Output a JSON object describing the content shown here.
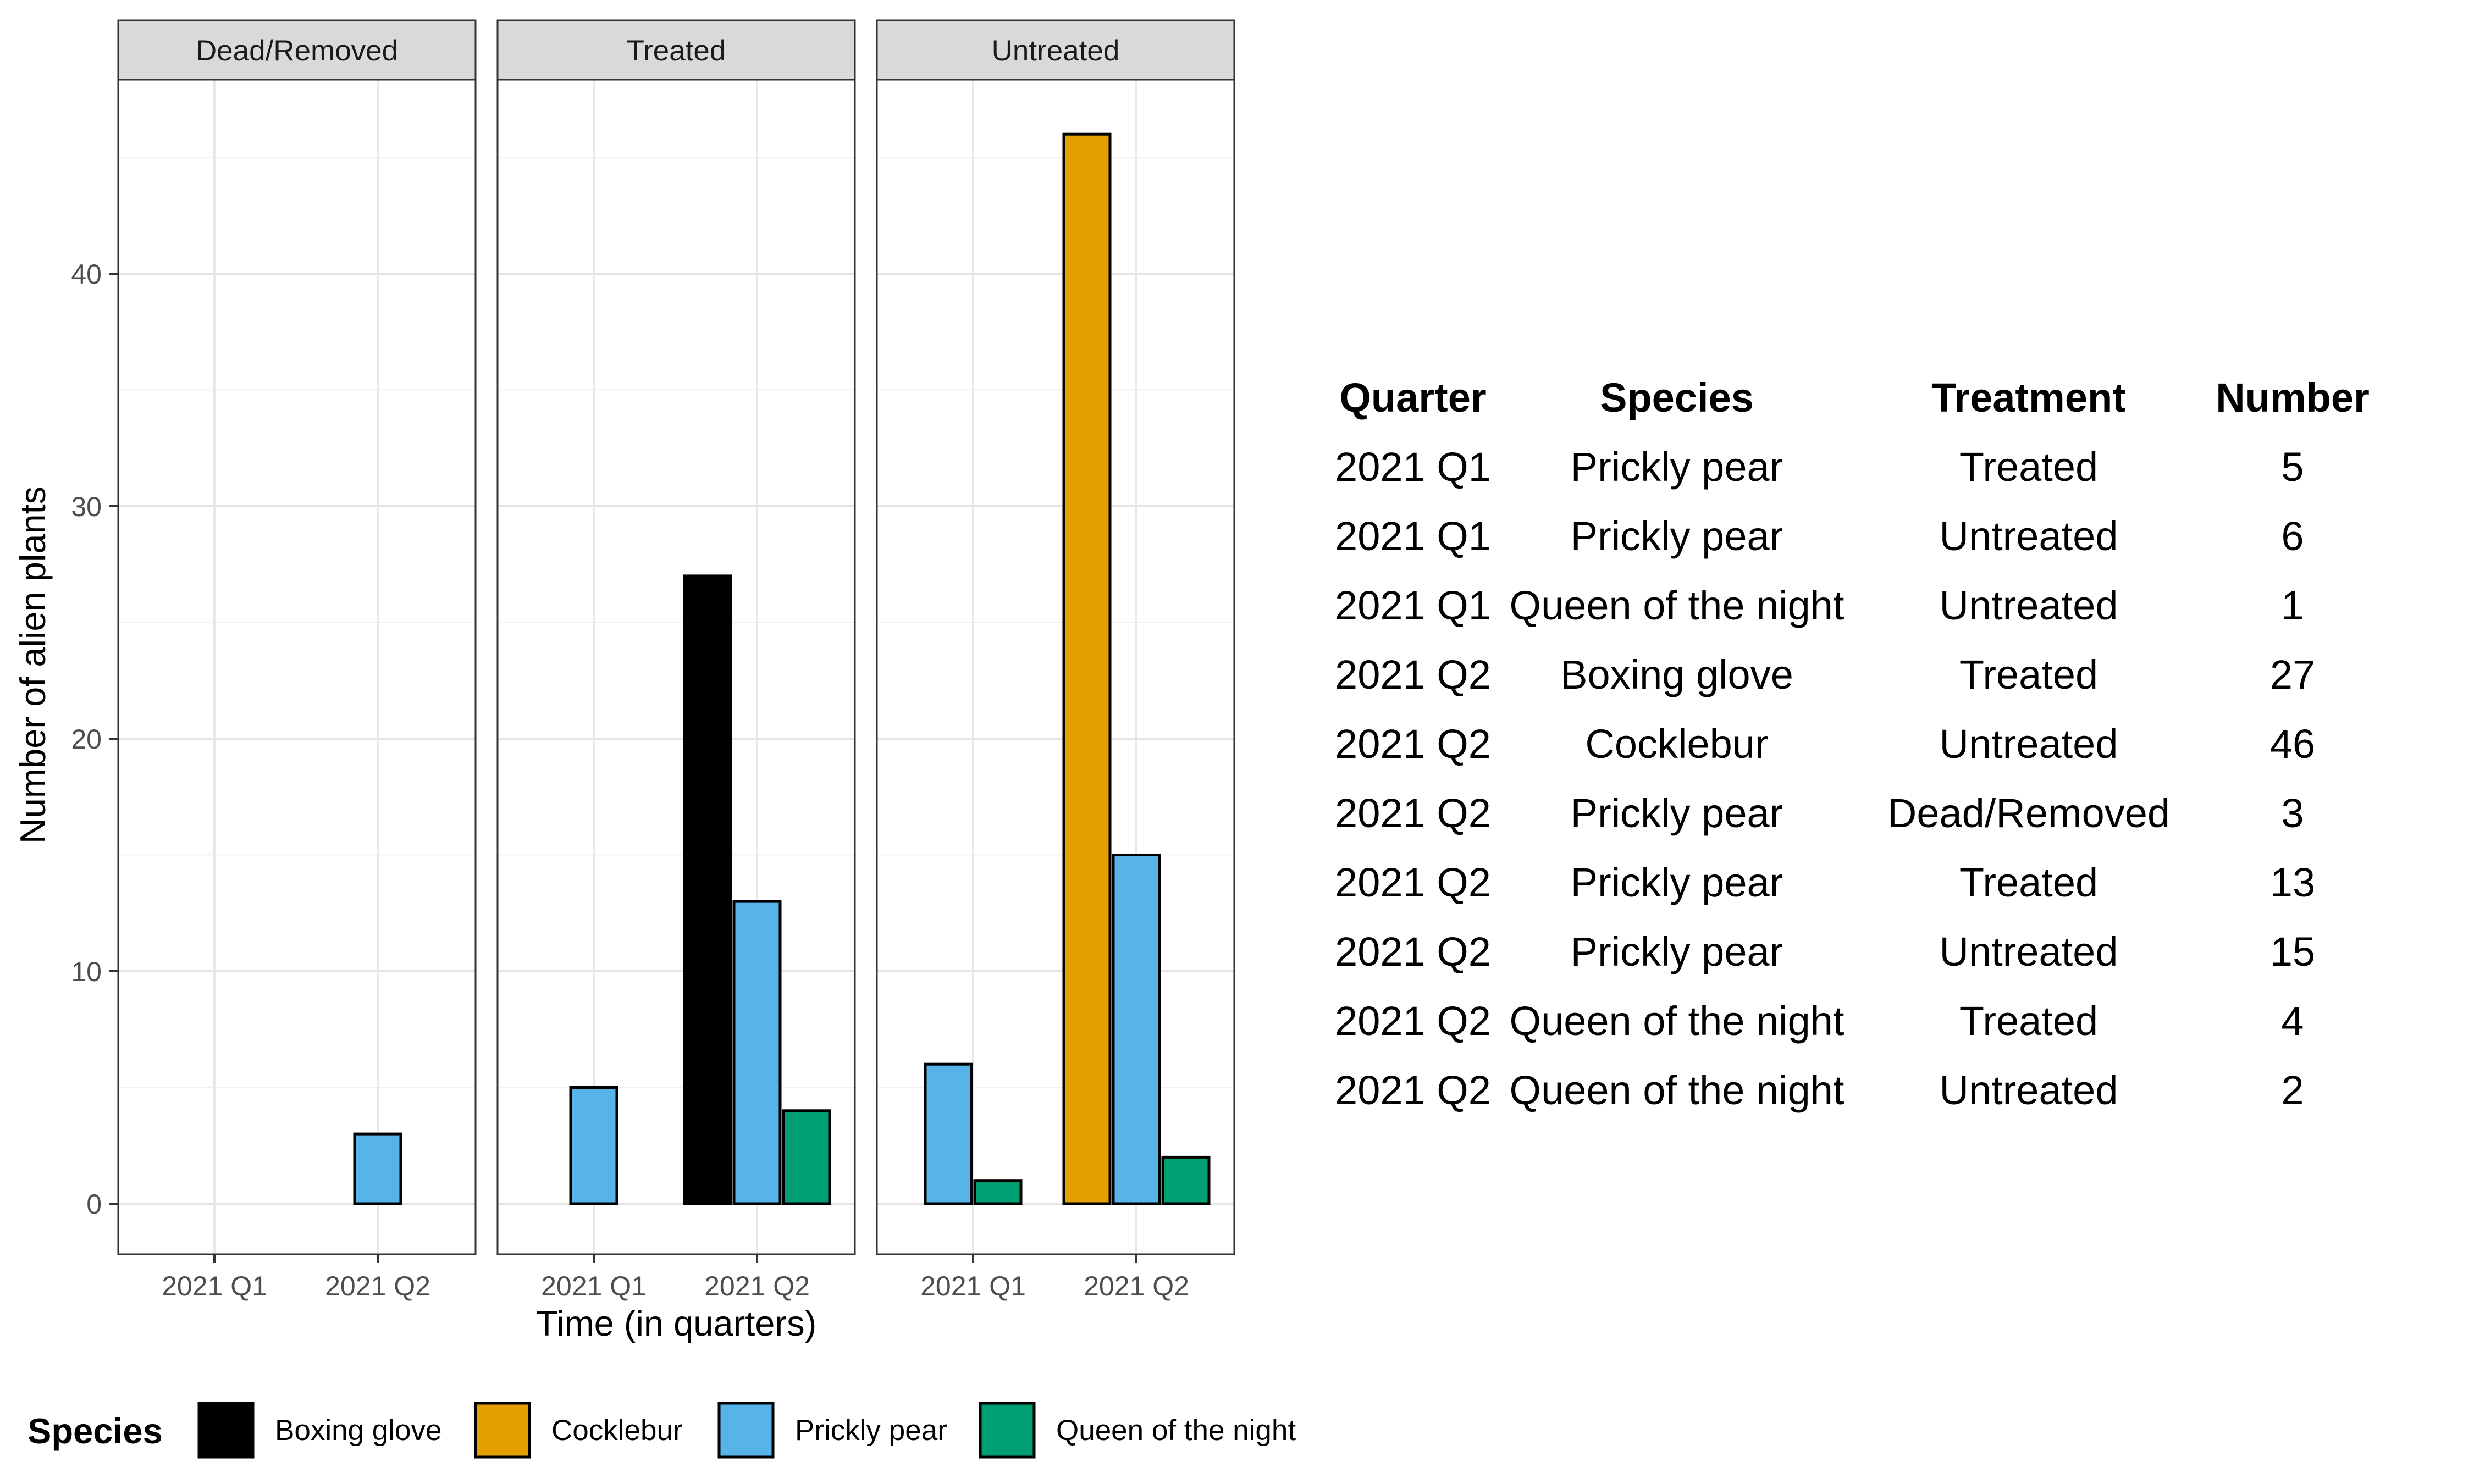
{
  "chart_data": {
    "type": "bar",
    "panels": [
      "Dead/Removed",
      "Treated",
      "Untreated"
    ],
    "categories": [
      "2021 Q1",
      "2021 Q2"
    ],
    "species_order": [
      "Boxing glove",
      "Cocklebur",
      "Prickly pear",
      "Queen of the night"
    ],
    "colors": {
      "Boxing glove": "#000000",
      "Cocklebur": "#E69F00",
      "Prickly pear": "#56B4E9",
      "Queen of the night": "#009E73"
    },
    "bars": [
      {
        "panel": "Dead/Removed",
        "quarter": "2021 Q2",
        "species": "Prickly pear",
        "value": 3
      },
      {
        "panel": "Treated",
        "quarter": "2021 Q1",
        "species": "Prickly pear",
        "value": 5
      },
      {
        "panel": "Treated",
        "quarter": "2021 Q2",
        "species": "Boxing glove",
        "value": 27
      },
      {
        "panel": "Treated",
        "quarter": "2021 Q2",
        "species": "Prickly pear",
        "value": 13
      },
      {
        "panel": "Treated",
        "quarter": "2021 Q2",
        "species": "Queen of the night",
        "value": 4
      },
      {
        "panel": "Untreated",
        "quarter": "2021 Q1",
        "species": "Prickly pear",
        "value": 6
      },
      {
        "panel": "Untreated",
        "quarter": "2021 Q1",
        "species": "Queen of the night",
        "value": 1
      },
      {
        "panel": "Untreated",
        "quarter": "2021 Q2",
        "species": "Cocklebur",
        "value": 46
      },
      {
        "panel": "Untreated",
        "quarter": "2021 Q2",
        "species": "Prickly pear",
        "value": 15
      },
      {
        "panel": "Untreated",
        "quarter": "2021 Q2",
        "species": "Queen of the night",
        "value": 2
      }
    ],
    "xlabel": "Time (in quarters)",
    "ylabel": "Number of alien plants",
    "ylim": [
      -2.3,
      50.7
    ],
    "yticks": [
      0,
      10,
      20,
      30,
      40
    ],
    "grid": true,
    "legend": {
      "title": "Species",
      "position": "bottom",
      "entries": [
        "Boxing glove",
        "Cocklebur",
        "Prickly pear",
        "Queen of the night"
      ]
    }
  },
  "table": {
    "headers": [
      "Quarter",
      "Species",
      "Treatment",
      "Number"
    ],
    "rows": [
      [
        "2021 Q1",
        "Prickly pear",
        "Treated",
        "5"
      ],
      [
        "2021 Q1",
        "Prickly pear",
        "Untreated",
        "6"
      ],
      [
        "2021 Q1",
        "Queen of the night",
        "Untreated",
        "1"
      ],
      [
        "2021 Q2",
        "Boxing glove",
        "Treated",
        "27"
      ],
      [
        "2021 Q2",
        "Cocklebur",
        "Untreated",
        "46"
      ],
      [
        "2021 Q2",
        "Prickly pear",
        "Dead/Removed",
        "3"
      ],
      [
        "2021 Q2",
        "Prickly pear",
        "Treated",
        "13"
      ],
      [
        "2021 Q2",
        "Prickly pear",
        "Untreated",
        "15"
      ],
      [
        "2021 Q2",
        "Queen of the night",
        "Treated",
        "4"
      ],
      [
        "2021 Q2",
        "Queen of the night",
        "Untreated",
        "2"
      ]
    ]
  }
}
